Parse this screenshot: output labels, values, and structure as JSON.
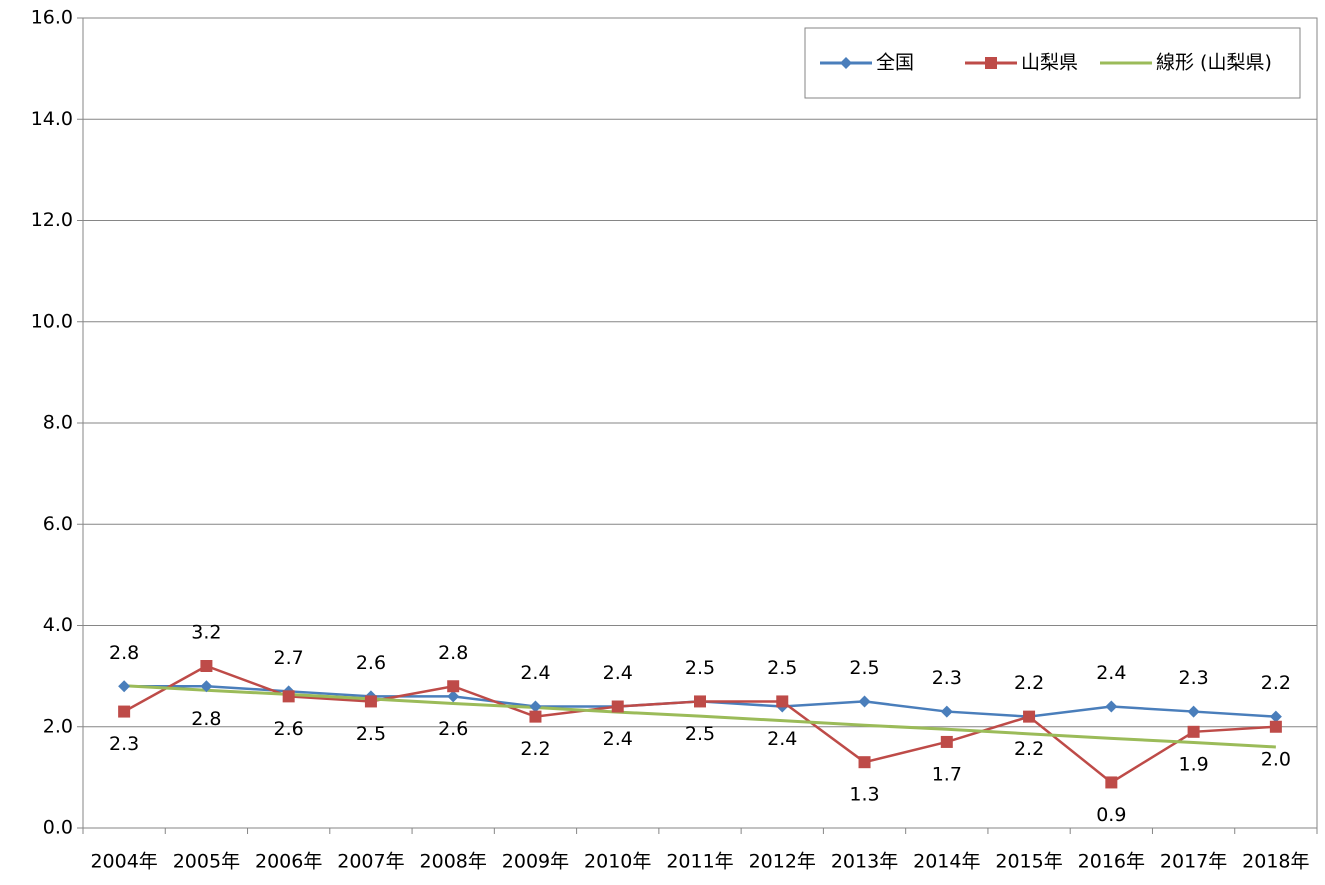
{
  "chart_data": {
    "type": "line",
    "categories": [
      "2004年",
      "2005年",
      "2006年",
      "2007年",
      "2008年",
      "2009年",
      "2010年",
      "2011年",
      "2012年",
      "2013年",
      "2014年",
      "2015年",
      "2016年",
      "2017年",
      "2018年"
    ],
    "series": [
      {
        "name": "全国",
        "color": "#4a7ebb",
        "marker": "diamond",
        "values": [
          2.8,
          2.8,
          2.7,
          2.6,
          2.6,
          2.4,
          2.4,
          2.5,
          2.4,
          2.5,
          2.3,
          2.2,
          2.4,
          2.3,
          2.2
        ],
        "value_labels": [
          "2.8",
          "2.8",
          "2.7",
          "2.6",
          "2.6",
          "2.4",
          "2.4",
          "2.5",
          "2.4",
          "2.5",
          "2.3",
          "2.2",
          "2.4",
          "2.3",
          "2.2"
        ]
      },
      {
        "name": "山梨県",
        "color": "#be4b48",
        "marker": "square",
        "values": [
          2.3,
          3.2,
          2.6,
          2.5,
          2.8,
          2.2,
          2.4,
          2.5,
          2.5,
          1.3,
          1.7,
          2.2,
          0.9,
          1.9,
          2.0
        ],
        "value_labels": [
          "2.3",
          "3.2",
          "2.6",
          "2.5",
          "2.8",
          "2.2",
          "2.4",
          "2.5",
          "2.5",
          "1.3",
          "1.7",
          "2.2",
          "0.9",
          "1.9",
          "2.0"
        ]
      },
      {
        "name": "線形 (山梨県)",
        "color": "#9bbb59",
        "marker": "none",
        "values": [
          2.81,
          2.72,
          2.64,
          2.55,
          2.46,
          2.38,
          2.29,
          2.21,
          2.12,
          2.03,
          1.95,
          1.86,
          1.77,
          1.69,
          1.6
        ]
      }
    ],
    "ylim": [
      0,
      16
    ],
    "yticks": [
      {
        "value": 0,
        "label": "0.0"
      },
      {
        "value": 2,
        "label": "2.0"
      },
      {
        "value": 4,
        "label": "4.0"
      },
      {
        "value": 6,
        "label": "6.0"
      },
      {
        "value": 8,
        "label": "8.0"
      },
      {
        "value": 10,
        "label": "10.0"
      },
      {
        "value": 12,
        "label": "12.0"
      },
      {
        "value": 14,
        "label": "14.0"
      },
      {
        "value": 16,
        "label": "16.0"
      }
    ],
    "grid": true,
    "legend": "top-right"
  }
}
